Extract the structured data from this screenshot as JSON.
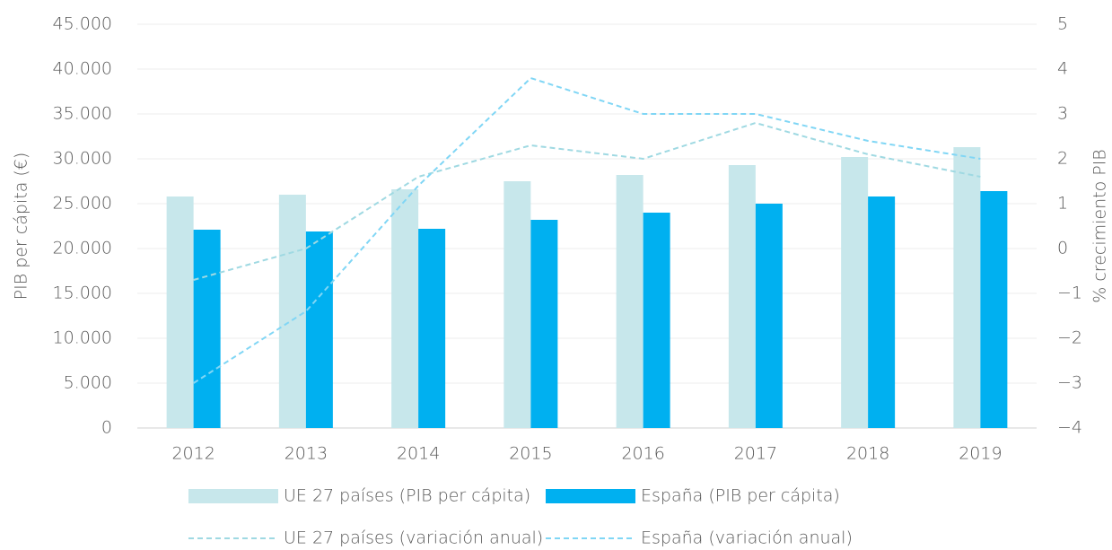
{
  "chart_data": {
    "type": "bar",
    "categories": [
      "2012",
      "2013",
      "2014",
      "2015",
      "2016",
      "2017",
      "2018",
      "2019"
    ],
    "series": [
      {
        "name": "UE 27 países (PIB per cápita)",
        "type": "bar",
        "color": "#c7e7eb",
        "values": [
          25800,
          26000,
          26600,
          27500,
          28200,
          29300,
          30200,
          31300
        ]
      },
      {
        "name": "España (PIB per cápita)",
        "type": "bar",
        "color": "#00b0f0",
        "values": [
          22100,
          21900,
          22200,
          23200,
          24000,
          25000,
          25800,
          26400
        ]
      },
      {
        "name": "UE 27 países (variación anual)",
        "type": "line",
        "axis": "y2",
        "color": "#9fd9e2",
        "values": [
          -0.7,
          0,
          1.6,
          2.3,
          2.0,
          2.8,
          2.1,
          1.6
        ]
      },
      {
        "name": "España (variación anual)",
        "type": "line",
        "axis": "y2",
        "color": "#80d6f5",
        "values": [
          -3.0,
          -1.4,
          1.4,
          3.8,
          3.0,
          3.0,
          2.4,
          2.0
        ]
      }
    ],
    "ylabel": "PIB per cápita (€)",
    "y2label": "% crecimiento PIB",
    "ylim": [
      0,
      45000
    ],
    "yticks": [
      0,
      {
        "value": 5000,
        "label": "5.000"
      },
      {
        "value": 10000,
        "label": "10.000"
      },
      {
        "value": 15000,
        "label": "15.000"
      },
      {
        "value": 20000,
        "label": "20.000"
      },
      {
        "value": 25000,
        "label": "25.000"
      },
      {
        "value": 30000,
        "label": "30.000"
      },
      {
        "value": 35000,
        "label": "35.000"
      },
      {
        "value": 40000,
        "label": "40.000"
      },
      {
        "value": 45000,
        "label": "45.000"
      }
    ],
    "y2lim": [
      -4,
      5
    ],
    "y2ticks": [
      {
        "value": -4,
        "label": "−4"
      },
      {
        "value": -3,
        "label": "−3"
      },
      {
        "value": -2,
        "label": "−2"
      },
      {
        "value": -1,
        "label": "−1"
      },
      0,
      1,
      2,
      3,
      4,
      5
    ],
    "grid": true,
    "legend": "bottom"
  }
}
